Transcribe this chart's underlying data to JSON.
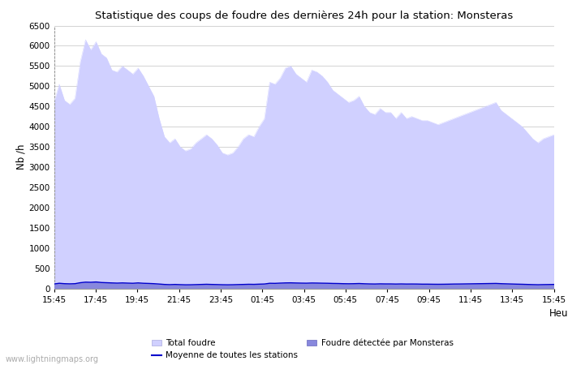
{
  "title": "Statistique des coups de foudre des dernières 24h pour la station: Monsteras",
  "xlabel": "Heure",
  "ylabel": "Nb /h",
  "ylim": [
    0,
    6500
  ],
  "yticks": [
    0,
    500,
    1000,
    1500,
    2000,
    2500,
    3000,
    3500,
    4000,
    4500,
    5000,
    5500,
    6000,
    6500
  ],
  "xtick_labels": [
    "15:45",
    "17:45",
    "19:45",
    "21:45",
    "23:45",
    "01:45",
    "03:45",
    "05:45",
    "07:45",
    "09:45",
    "11:45",
    "13:45",
    "15:45"
  ],
  "bg_color": "#ffffff",
  "grid_color": "#cccccc",
  "fill_total_color": "#d0d0ff",
  "fill_local_color": "#8888dd",
  "line_mean_color": "#0000cc",
  "watermark": "www.lightningmaps.org",
  "total_foudre": [
    4600,
    5050,
    4650,
    4550,
    4700,
    5600,
    6150,
    5900,
    6100,
    5800,
    5700,
    5400,
    5350,
    5500,
    5400,
    5300,
    5450,
    5250,
    5000,
    4750,
    4200,
    3750,
    3600,
    3700,
    3500,
    3400,
    3450,
    3600,
    3700,
    3800,
    3700,
    3550,
    3350,
    3300,
    3350,
    3500,
    3700,
    3800,
    3750,
    4000,
    4200,
    5100,
    5050,
    5200,
    5450,
    5500,
    5300,
    5200,
    5100,
    5400,
    5350,
    5250,
    5100,
    4900,
    4800,
    4700,
    4600,
    4650,
    4750,
    4500,
    4350,
    4300,
    4450,
    4350,
    4350,
    4200,
    4350,
    4200,
    4250,
    4200,
    4150,
    4150,
    4100,
    4050,
    4100,
    4150,
    4200,
    4250,
    4300,
    4350,
    4400,
    4450,
    4500,
    4550,
    4600,
    4400,
    4300,
    4200,
    4100,
    4000,
    3850,
    3700,
    3600,
    3700,
    3750,
    3800
  ],
  "local_foudre": [
    110,
    130,
    120,
    115,
    120,
    145,
    160,
    155,
    165,
    150,
    145,
    140,
    135,
    140,
    135,
    130,
    140,
    130,
    125,
    120,
    110,
    100,
    95,
    100,
    95,
    90,
    92,
    96,
    100,
    105,
    100,
    97,
    93,
    90,
    93,
    97,
    100,
    105,
    102,
    108,
    112,
    130,
    128,
    135,
    140,
    142,
    138,
    135,
    132,
    138,
    136,
    132,
    130,
    126,
    124,
    120,
    118,
    120,
    124,
    118,
    114,
    112,
    116,
    114,
    114,
    110,
    114,
    110,
    112,
    110,
    108,
    108,
    106,
    104,
    106,
    108,
    110,
    112,
    114,
    116,
    118,
    120,
    122,
    124,
    126,
    120,
    116,
    112,
    108,
    104,
    100,
    96,
    93,
    96,
    98,
    100
  ],
  "mean_line": [
    108,
    126,
    116,
    112,
    116,
    140,
    154,
    150,
    158,
    145,
    140,
    135,
    130,
    135,
    130,
    126,
    135,
    126,
    122,
    116,
    107,
    97,
    92,
    97,
    92,
    88,
    89,
    93,
    97,
    101,
    97,
    94,
    90,
    88,
    90,
    94,
    97,
    101,
    99,
    104,
    108,
    126,
    124,
    130,
    135,
    137,
    133,
    130,
    128,
    133,
    131,
    128,
    126,
    122,
    120,
    116,
    114,
    116,
    120,
    114,
    110,
    108,
    112,
    110,
    110,
    107,
    110,
    107,
    108,
    107,
    104,
    104,
    102,
    101,
    102,
    104,
    107,
    108,
    110,
    112,
    114,
    116,
    118,
    120,
    122,
    116,
    112,
    108,
    104,
    101,
    97,
    93,
    90,
    93,
    95,
    97
  ]
}
